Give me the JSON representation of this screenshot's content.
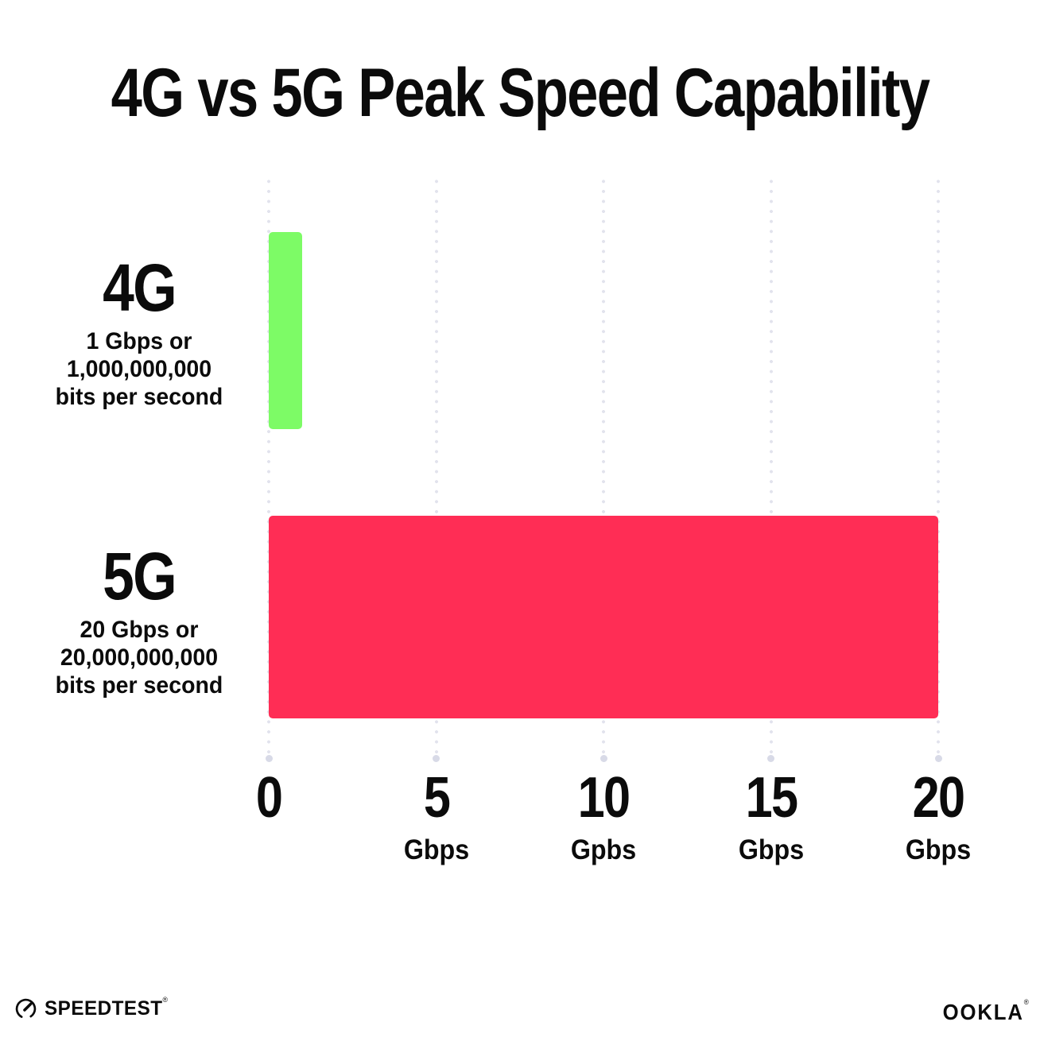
{
  "title": "4G vs 5G Peak Speed Capability",
  "colors": {
    "background": "#FFFFFF",
    "text": "#0B0B0B",
    "bar_4g_green": "#7DFB66",
    "bar_5g_pink": "#FF2D55",
    "grid_dot": "#E2E3ED",
    "grid_end_dot": "#D8DAE7"
  },
  "chart_data": {
    "type": "bar",
    "orientation": "horizontal",
    "title": "4G vs 5G Peak Speed Capability",
    "categories": [
      "4G",
      "5G"
    ],
    "values": [
      1,
      20
    ],
    "xlabel": "Gbps",
    "xlim": [
      0,
      20
    ],
    "grid": "dotted vertical gridlines at each tick, round end dot at baseline",
    "legend": "none",
    "bars": [
      {
        "label": "4G",
        "value": 1,
        "color": "#7DFB66",
        "sublabel_lines": [
          "1 Gbps or",
          "1,000,000,000",
          "bits per second"
        ]
      },
      {
        "label": "5G",
        "value": 20,
        "color": "#FF2D55",
        "sublabel_lines": [
          "20 Gbps or",
          "20,000,000,000",
          "bits per second"
        ]
      }
    ],
    "x_ticks": [
      {
        "value": 0,
        "label": "0",
        "unit": ""
      },
      {
        "value": 5,
        "label": "5",
        "unit": "Gbps"
      },
      {
        "value": 10,
        "label": "10",
        "unit": "Gpbs"
      },
      {
        "value": 15,
        "label": "15",
        "unit": "Gbps"
      },
      {
        "value": 20,
        "label": "20",
        "unit": "Gbps"
      }
    ]
  },
  "footer": {
    "speedtest_label": "SPEEDTEST",
    "speedtest_trademark": "®",
    "ookla_label": "OOKLA",
    "ookla_trademark": "®"
  }
}
